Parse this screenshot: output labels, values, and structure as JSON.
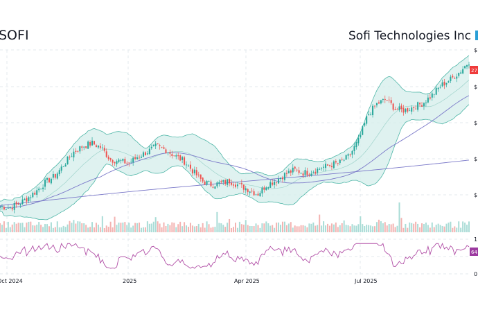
{
  "header": {
    "ticker": "SOFI",
    "company_name": "Sofi Technologies Inc"
  },
  "chart_data": {
    "type": "candlestick",
    "x_tick_labels": [
      "Oct 2024",
      "2025",
      "Apr 2025",
      "Jul 2025"
    ],
    "price_axis_ticks": [
      "$",
      "$",
      "$",
      "$",
      "$"
    ],
    "last_price_label": "27",
    "oscillator_axis_ticks": [
      "1",
      "0"
    ],
    "oscillator_last_label": "64",
    "price_ylim": [
      0,
      1
    ],
    "price_series_approx": [
      7.5,
      7.3,
      7.8,
      8.6,
      9.6,
      10.8,
      11.6,
      13.2,
      14.8,
      15.6,
      16.0,
      15.4,
      13.8,
      13.6,
      13.3,
      14.2,
      14.8,
      15.6,
      15.1,
      14.3,
      13.6,
      12.2,
      10.9,
      10.4,
      10.6,
      10.9,
      10.3,
      9.8,
      9.1,
      10.4,
      11.0,
      11.8,
      12.4,
      12.0,
      12.2,
      12.7,
      13.1,
      13.4,
      14.3,
      16.4,
      19.8,
      21.3,
      21.9,
      20.6,
      20.4,
      20.9,
      21.4,
      22.5,
      23.8,
      24.6,
      25.6,
      27.0
    ],
    "colors": {
      "up": "#26a69a",
      "down": "#ef5350",
      "band_fill": "#d7efec",
      "band_line": "#4cb5a6",
      "ma_line": "#7b79c9",
      "oscillator_line": "#b14fa6",
      "last_price_badge": "#ef3b3b",
      "oscillator_badge": "#9c3aa0",
      "grid": "#e3e8ee"
    }
  }
}
